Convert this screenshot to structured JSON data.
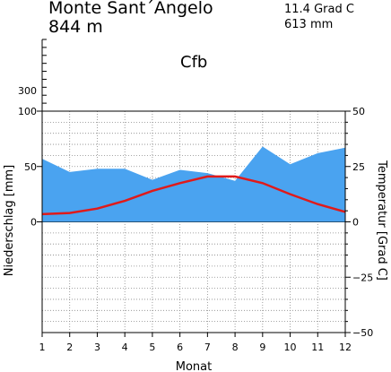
{
  "header": {
    "station": "Monte Sant´Angelo",
    "elevation": "844 m",
    "mean_temp": "11.4 Grad C",
    "annual_precip": "613 mm",
    "climate_class": "Cfb"
  },
  "colors": {
    "precip_fill": "#4aa3f0",
    "temp_line": "#e01a1a",
    "grid": "#888888"
  },
  "chart_data": {
    "type": "area",
    "x": [
      1,
      2,
      3,
      4,
      5,
      6,
      7,
      8,
      9,
      10,
      11,
      12
    ],
    "xlabel": "Monat",
    "y_left_label": "Niederschlag [mm]",
    "y_right_label": "Temperatur [Grad C]",
    "y_left_ticks": [
      "300",
      "100",
      "50",
      "0"
    ],
    "y_right_ticks": [
      "50",
      "25",
      "0",
      "−25",
      "−50"
    ],
    "x_ticks": [
      "1",
      "2",
      "3",
      "4",
      "5",
      "6",
      "7",
      "8",
      "9",
      "10",
      "11",
      "12"
    ],
    "ylim_temp": [
      -50,
      50
    ],
    "grid": true,
    "series": [
      {
        "values": [
          57,
          45,
          48,
          48,
          38,
          47,
          44,
          37,
          68,
          52,
          62,
          67
        ]
      },
      {
        "values": [
          3.5,
          4,
          6,
          9.5,
          14,
          17.5,
          20.5,
          20.5,
          17.5,
          12.5,
          8,
          4.5
        ]
      }
    ]
  }
}
